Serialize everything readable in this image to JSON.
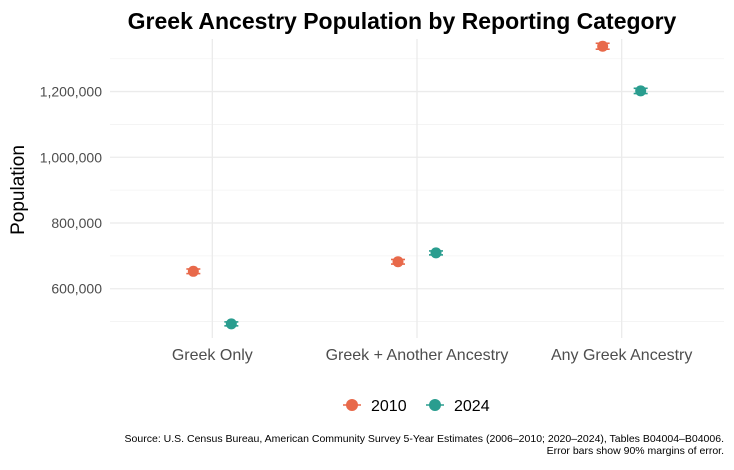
{
  "chart_data": {
    "type": "scatter",
    "title": "Greek Ancestry Population by Reporting Category",
    "xlabel": "",
    "ylabel": "Population",
    "categories": [
      "Greek Only",
      "Greek + Another Ancestry",
      "Any Greek Ancestry"
    ],
    "ylim": [
      450000,
      1360000
    ],
    "yticks": [
      600000,
      800000,
      1000000,
      1200000
    ],
    "ytick_labels": [
      "600,000",
      "800,000",
      "1,000,000",
      "1,200,000"
    ],
    "grid": true,
    "legend_position": "bottom",
    "error_bars": "90% margins of error",
    "series": [
      {
        "name": "2010",
        "color": "#e8694a",
        "values": [
          653000,
          682000,
          1338000
        ],
        "moe": [
          7000,
          7000,
          9000
        ]
      },
      {
        "name": "2024",
        "color": "#2a9d8f",
        "values": [
          493000,
          709000,
          1202000
        ],
        "moe": [
          6000,
          6000,
          8000
        ]
      }
    ],
    "caption": [
      "Source: U.S. Census Bureau, American Community Survey 5-Year Estimates (2006–2010; 2020–2024), Tables B04004–B04006.",
      "Error bars show 90% margins of error."
    ]
  }
}
